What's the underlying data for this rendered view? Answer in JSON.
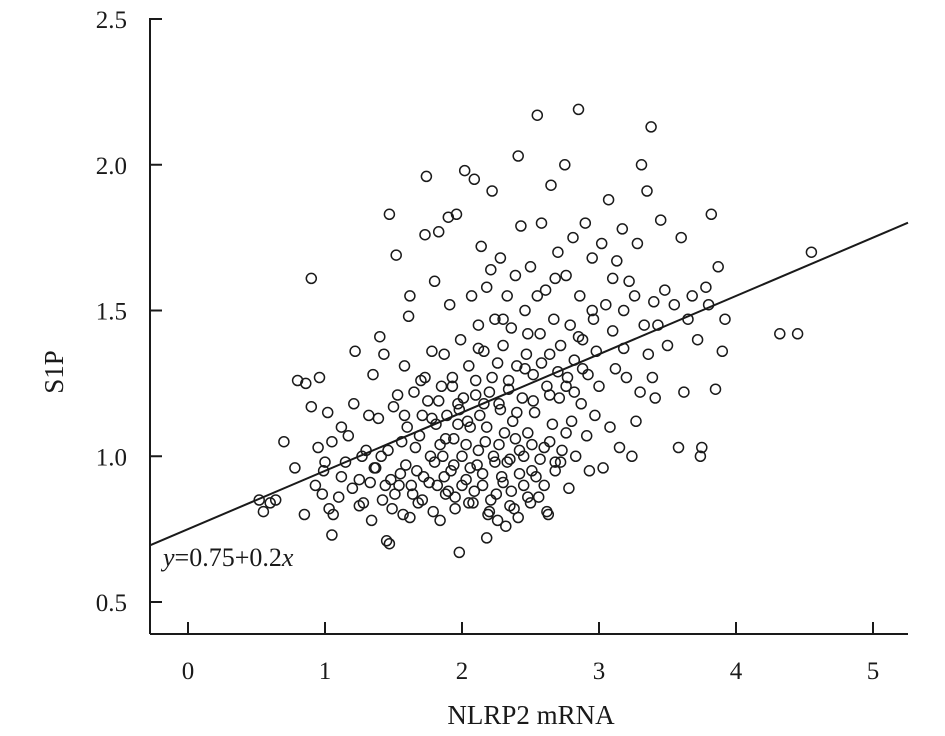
{
  "chart_data": {
    "type": "scatter",
    "xlabel": "NLRP2 mRNA",
    "ylabel": "S1P",
    "xlim": [
      -0.25,
      5.25
    ],
    "ylim": [
      0.4,
      2.5
    ],
    "x_ticks": [
      0,
      1,
      2,
      3,
      4,
      5
    ],
    "x_tick_labels": [
      "0",
      "1",
      "2",
      "3",
      "4",
      "5"
    ],
    "y_ticks": [
      0.5,
      1.0,
      1.5,
      2.0,
      2.5
    ],
    "y_tick_labels": [
      "0.5",
      "1.0",
      "1.5",
      "2.0",
      "2.5"
    ],
    "grid": false,
    "legend": "none",
    "marker": "open-circle",
    "regression": {
      "intercept": 0.75,
      "slope": 0.2,
      "label_prefix": "y",
      "label_mid": "=0.75+0.2",
      "label_suffix": "x"
    },
    "series": [
      {
        "points": [
          [
            0.52,
            0.85
          ],
          [
            0.55,
            0.81
          ],
          [
            0.6,
            0.84
          ],
          [
            0.64,
            0.85
          ],
          [
            0.7,
            1.05
          ],
          [
            0.78,
            0.96
          ],
          [
            0.8,
            1.26
          ],
          [
            0.85,
            0.8
          ],
          [
            0.86,
            1.25
          ],
          [
            0.9,
            1.61
          ],
          [
            0.9,
            1.17
          ],
          [
            0.93,
            0.9
          ],
          [
            0.95,
            1.03
          ],
          [
            0.96,
            1.27
          ],
          [
            0.98,
            0.87
          ],
          [
            0.99,
            0.95
          ],
          [
            1.0,
            0.98
          ],
          [
            1.02,
            1.15
          ],
          [
            1.03,
            0.82
          ],
          [
            1.05,
            1.05
          ],
          [
            1.06,
            0.8
          ],
          [
            1.1,
            0.86
          ],
          [
            1.12,
            1.1
          ],
          [
            1.15,
            0.98
          ],
          [
            1.17,
            1.07
          ],
          [
            1.2,
            0.89
          ],
          [
            1.21,
            1.18
          ],
          [
            1.22,
            1.36
          ],
          [
            1.25,
            0.92
          ],
          [
            1.27,
            1.0
          ],
          [
            1.28,
            0.84
          ],
          [
            1.3,
            1.02
          ],
          [
            1.32,
            1.14
          ],
          [
            1.34,
            0.78
          ],
          [
            1.35,
            1.28
          ],
          [
            1.37,
            0.96
          ],
          [
            1.39,
            1.13
          ],
          [
            1.4,
            1.41
          ],
          [
            1.41,
            1.0
          ],
          [
            1.43,
            1.35
          ],
          [
            1.44,
            0.9
          ],
          [
            1.45,
            0.71
          ],
          [
            1.47,
            0.7
          ],
          [
            1.47,
            1.83
          ],
          [
            1.48,
            0.92
          ],
          [
            1.5,
            1.17
          ],
          [
            1.51,
            0.87
          ],
          [
            1.52,
            1.69
          ],
          [
            1.53,
            1.21
          ],
          [
            1.55,
            0.94
          ],
          [
            1.56,
            1.05
          ],
          [
            1.57,
            0.8
          ],
          [
            1.58,
            1.31
          ],
          [
            1.6,
            1.1
          ],
          [
            1.61,
            1.48
          ],
          [
            1.62,
            1.55
          ],
          [
            1.63,
            0.9
          ],
          [
            1.65,
            1.22
          ],
          [
            1.66,
            1.03
          ],
          [
            1.68,
            0.84
          ],
          [
            1.7,
            1.26
          ],
          [
            1.71,
            1.14
          ],
          [
            1.72,
            0.93
          ],
          [
            1.73,
            1.76
          ],
          [
            1.74,
            1.96
          ],
          [
            1.75,
            1.19
          ],
          [
            1.77,
            1.0
          ],
          [
            1.78,
            1.36
          ],
          [
            1.79,
            0.81
          ],
          [
            1.8,
            1.6
          ],
          [
            1.81,
            1.11
          ],
          [
            1.82,
            0.9
          ],
          [
            1.83,
            1.77
          ],
          [
            1.85,
            1.24
          ],
          [
            1.86,
            1.0
          ],
          [
            1.87,
            1.35
          ],
          [
            1.88,
            0.87
          ],
          [
            1.89,
            1.14
          ],
          [
            1.9,
            1.82
          ],
          [
            1.91,
            1.52
          ],
          [
            1.92,
            0.95
          ],
          [
            1.93,
            1.27
          ],
          [
            1.94,
            1.06
          ],
          [
            1.95,
            0.86
          ],
          [
            1.96,
            1.83
          ],
          [
            1.97,
            1.18
          ],
          [
            1.98,
            0.67
          ],
          [
            1.99,
            1.4
          ],
          [
            2.0,
            1.0
          ],
          [
            2.01,
            1.2
          ],
          [
            2.02,
            1.98
          ],
          [
            2.03,
            0.92
          ],
          [
            2.05,
            1.31
          ],
          [
            2.06,
            1.1
          ],
          [
            2.07,
            1.55
          ],
          [
            2.08,
            0.84
          ],
          [
            2.09,
            1.95
          ],
          [
            2.1,
            1.26
          ],
          [
            2.11,
            0.97
          ],
          [
            2.12,
            1.45
          ],
          [
            2.13,
            1.14
          ],
          [
            2.14,
            1.72
          ],
          [
            2.15,
            0.9
          ],
          [
            2.16,
            1.36
          ],
          [
            2.17,
            1.05
          ],
          [
            2.18,
            1.58
          ],
          [
            2.19,
            0.8
          ],
          [
            2.2,
            1.22
          ],
          [
            2.21,
            1.64
          ],
          [
            2.22,
            1.91
          ],
          [
            2.23,
            1.0
          ],
          [
            2.24,
            1.47
          ],
          [
            2.25,
            0.87
          ],
          [
            2.26,
            1.32
          ],
          [
            2.27,
            1.18
          ],
          [
            2.28,
            1.68
          ],
          [
            2.29,
            0.93
          ],
          [
            2.3,
            1.38
          ],
          [
            2.31,
            1.08
          ],
          [
            2.32,
            0.76
          ],
          [
            2.33,
            1.55
          ],
          [
            2.34,
            1.26
          ],
          [
            2.35,
            0.99
          ],
          [
            2.36,
            1.44
          ],
          [
            2.37,
            1.12
          ],
          [
            2.38,
            0.82
          ],
          [
            2.39,
            1.62
          ],
          [
            2.4,
            1.31
          ],
          [
            2.41,
            2.03
          ],
          [
            2.42,
            1.02
          ],
          [
            2.43,
            1.79
          ],
          [
            2.44,
            1.2
          ],
          [
            2.45,
            0.9
          ],
          [
            2.46,
            1.5
          ],
          [
            2.47,
            1.35
          ],
          [
            2.48,
            1.08
          ],
          [
            2.5,
            1.65
          ],
          [
            2.51,
            0.95
          ],
          [
            2.52,
            1.28
          ],
          [
            2.53,
            1.15
          ],
          [
            2.55,
            2.17
          ],
          [
            2.56,
            0.86
          ],
          [
            2.57,
            1.42
          ],
          [
            2.58,
            1.8
          ],
          [
            2.6,
            1.03
          ],
          [
            2.61,
            1.57
          ],
          [
            2.62,
            1.24
          ],
          [
            2.63,
            0.8
          ],
          [
            2.64,
            1.35
          ],
          [
            2.65,
            1.93
          ],
          [
            2.66,
            1.11
          ],
          [
            2.67,
            1.47
          ],
          [
            2.68,
            0.98
          ],
          [
            2.7,
            1.7
          ],
          [
            2.71,
            1.2
          ],
          [
            2.72,
            1.38
          ],
          [
            2.73,
            1.02
          ],
          [
            2.75,
            2.0
          ],
          [
            2.76,
            1.62
          ],
          [
            2.77,
            1.27
          ],
          [
            2.78,
            0.89
          ],
          [
            2.79,
            1.45
          ],
          [
            2.8,
            1.12
          ],
          [
            2.81,
            1.75
          ],
          [
            2.82,
            1.33
          ],
          [
            2.83,
            1.0
          ],
          [
            2.85,
            2.19
          ],
          [
            2.86,
            1.55
          ],
          [
            2.87,
            1.18
          ],
          [
            2.88,
            1.4
          ],
          [
            2.9,
            1.8
          ],
          [
            2.91,
            1.07
          ],
          [
            2.92,
            1.28
          ],
          [
            2.93,
            0.95
          ],
          [
            2.95,
            1.68
          ],
          [
            2.96,
            1.47
          ],
          [
            2.97,
            1.14
          ],
          [
            2.98,
            1.36
          ],
          [
            3.0,
            1.24
          ],
          [
            3.02,
            1.73
          ],
          [
            3.03,
            0.96
          ],
          [
            3.05,
            1.52
          ],
          [
            3.07,
            1.88
          ],
          [
            3.08,
            1.1
          ],
          [
            3.1,
            1.43
          ],
          [
            3.12,
            1.3
          ],
          [
            3.13,
            1.67
          ],
          [
            3.15,
            1.03
          ],
          [
            3.17,
            1.78
          ],
          [
            3.18,
            1.5
          ],
          [
            3.2,
            1.27
          ],
          [
            3.22,
            1.6
          ],
          [
            3.24,
            1.0
          ],
          [
            3.26,
            1.55
          ],
          [
            3.28,
            1.73
          ],
          [
            3.3,
            1.22
          ],
          [
            3.31,
            2.0
          ],
          [
            3.33,
            1.45
          ],
          [
            3.35,
            1.91
          ],
          [
            3.36,
            1.35
          ],
          [
            3.38,
            2.13
          ],
          [
            3.4,
            1.53
          ],
          [
            3.41,
            1.2
          ],
          [
            3.43,
            1.45
          ],
          [
            3.45,
            1.81
          ],
          [
            3.48,
            1.57
          ],
          [
            3.5,
            1.38
          ],
          [
            3.55,
            1.52
          ],
          [
            3.58,
            1.03
          ],
          [
            3.6,
            1.75
          ],
          [
            3.62,
            1.22
          ],
          [
            3.65,
            1.47
          ],
          [
            3.68,
            1.55
          ],
          [
            3.72,
            1.4
          ],
          [
            3.74,
            1.0
          ],
          [
            3.75,
            1.03
          ],
          [
            3.78,
            1.58
          ],
          [
            3.8,
            1.52
          ],
          [
            3.82,
            1.83
          ],
          [
            3.85,
            1.23
          ],
          [
            3.87,
            1.65
          ],
          [
            3.9,
            1.36
          ],
          [
            3.92,
            1.47
          ],
          [
            4.32,
            1.42
          ],
          [
            4.45,
            1.42
          ],
          [
            4.55,
            1.7
          ],
          [
            1.12,
            0.93
          ],
          [
            1.25,
            0.83
          ],
          [
            1.36,
            0.96
          ],
          [
            1.42,
            0.85
          ],
          [
            1.46,
            1.02
          ],
          [
            1.54,
            0.9
          ],
          [
            1.59,
            0.97
          ],
          [
            1.64,
            0.87
          ],
          [
            1.67,
            0.95
          ],
          [
            1.69,
            1.07
          ],
          [
            1.71,
            0.85
          ],
          [
            1.76,
            0.91
          ],
          [
            1.8,
            0.98
          ],
          [
            1.84,
            1.04
          ],
          [
            1.87,
            0.93
          ],
          [
            1.9,
            0.88
          ],
          [
            1.94,
            0.97
          ],
          [
            1.97,
            1.11
          ],
          [
            2.0,
            0.9
          ],
          [
            2.03,
            1.04
          ],
          [
            2.06,
            0.96
          ],
          [
            2.09,
            0.88
          ],
          [
            2.12,
            1.02
          ],
          [
            2.15,
            0.94
          ],
          [
            2.18,
            1.1
          ],
          [
            2.21,
            0.85
          ],
          [
            2.24,
            0.98
          ],
          [
            2.27,
            1.04
          ],
          [
            2.3,
            0.91
          ],
          [
            2.33,
            0.98
          ],
          [
            2.36,
            0.88
          ],
          [
            2.39,
            1.06
          ],
          [
            2.42,
            0.94
          ],
          [
            2.45,
            1.0
          ],
          [
            2.48,
            0.86
          ],
          [
            2.51,
            1.04
          ],
          [
            2.54,
            0.93
          ],
          [
            2.57,
            0.99
          ],
          [
            2.6,
            0.9
          ],
          [
            2.64,
            1.05
          ],
          [
            2.68,
            0.95
          ],
          [
            2.72,
            0.98
          ],
          [
            2.76,
            1.08
          ],
          [
            1.78,
            1.13
          ],
          [
            1.83,
            1.19
          ],
          [
            1.88,
            1.06
          ],
          [
            1.93,
            1.24
          ],
          [
            1.98,
            1.16
          ],
          [
            2.04,
            1.12
          ],
          [
            2.1,
            1.21
          ],
          [
            2.16,
            1.18
          ],
          [
            2.22,
            1.27
          ],
          [
            2.28,
            1.16
          ],
          [
            2.34,
            1.23
          ],
          [
            2.4,
            1.15
          ],
          [
            2.46,
            1.3
          ],
          [
            2.52,
            1.19
          ],
          [
            2.58,
            1.32
          ],
          [
            2.64,
            1.21
          ],
          [
            2.7,
            1.29
          ],
          [
            2.76,
            1.24
          ],
          [
            2.82,
            1.22
          ],
          [
            2.88,
            1.3
          ],
          [
            1.95,
            0.82
          ],
          [
            2.05,
            0.84
          ],
          [
            2.2,
            0.81
          ],
          [
            2.35,
            0.83
          ],
          [
            2.5,
            0.84
          ],
          [
            1.62,
            0.79
          ],
          [
            1.84,
            0.78
          ],
          [
            2.26,
            0.78
          ],
          [
            2.41,
            0.79
          ],
          [
            2.62,
            0.81
          ],
          [
            1.33,
            0.91
          ],
          [
            1.49,
            0.82
          ],
          [
            1.58,
            1.14
          ],
          [
            1.73,
            1.27
          ],
          [
            2.12,
            1.37
          ],
          [
            2.3,
            1.47
          ],
          [
            2.48,
            1.42
          ],
          [
            2.55,
            1.55
          ],
          [
            2.68,
            1.61
          ],
          [
            2.85,
            1.41
          ],
          [
            2.95,
            1.5
          ],
          [
            3.1,
            1.61
          ],
          [
            3.18,
            1.37
          ],
          [
            3.27,
            1.12
          ],
          [
            3.39,
            1.27
          ],
          [
            2.18,
            0.72
          ],
          [
            1.05,
            0.73
          ]
        ]
      }
    ]
  }
}
